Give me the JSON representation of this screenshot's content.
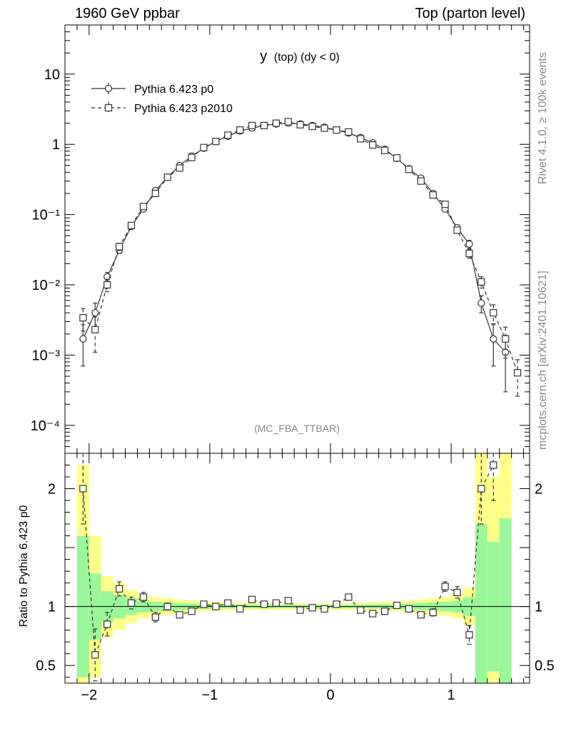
{
  "header": {
    "left": "1960 GeV ppbar",
    "right": "Top (parton level)"
  },
  "side": {
    "rivet": "Rivet 4.1.0, ≥ 100k events",
    "mcplots": "mcplots.cern.ch [arXiv:2401.10621]"
  },
  "colors": {
    "green": "#99f799",
    "yellow": "#ffff88",
    "line": "#333333",
    "grey": "#888888"
  },
  "chart_data": {
    "type": "line",
    "title_main": "y",
    "title_paren": "(top) (dy < 0)",
    "watermark": "(MC_FBA_TTBAR)",
    "xlabel": "",
    "ylabel_ratio": "Ratio to Pythia 6.423 p0",
    "xlim": [
      -2.2,
      1.65
    ],
    "ylim": [
      4e-05,
      50
    ],
    "ratio_ylim": [
      0.35,
      2.3
    ],
    "x_ticks": [
      "−2",
      "−1",
      "0",
      "1"
    ],
    "y_ticks": [
      "10",
      "1",
      "10⁻¹",
      "10⁻²",
      "10⁻³",
      "10⁻⁴"
    ],
    "ratio_ticks": [
      "2",
      "1",
      "0.5"
    ],
    "x": [
      -2.05,
      -1.95,
      -1.85,
      -1.75,
      -1.65,
      -1.55,
      -1.45,
      -1.35,
      -1.25,
      -1.15,
      -1.05,
      -0.95,
      -0.85,
      -0.75,
      -0.65,
      -0.55,
      -0.45,
      -0.35,
      -0.25,
      -0.15,
      -0.05,
      0.05,
      0.15,
      0.25,
      0.35,
      0.45,
      0.55,
      0.65,
      0.75,
      0.85,
      0.95,
      1.05,
      1.15,
      1.25,
      1.35,
      1.45,
      1.55
    ],
    "series": [
      {
        "name": "Pythia 6.423 p0",
        "marker": "circle",
        "values": [
          0.0017,
          0.004,
          0.013,
          0.031,
          0.068,
          0.12,
          0.22,
          0.34,
          0.5,
          0.68,
          0.88,
          1.1,
          1.3,
          1.55,
          1.7,
          1.85,
          1.95,
          2.0,
          1.95,
          1.85,
          1.75,
          1.6,
          1.45,
          1.25,
          1.05,
          0.85,
          0.63,
          0.45,
          0.33,
          0.2,
          0.12,
          0.065,
          0.038,
          0.0055,
          0.0017,
          0.0011,
          null
        ],
        "errors": [
          0.001,
          0.0015,
          0.002,
          0.003,
          0.005,
          0.007,
          0.01,
          0.015,
          0.02,
          0.025,
          0.03,
          0.03,
          0.035,
          0.04,
          0.04,
          0.04,
          0.045,
          0.045,
          0.045,
          0.04,
          0.04,
          0.04,
          0.035,
          0.035,
          0.03,
          0.03,
          0.025,
          0.02,
          0.015,
          0.01,
          0.008,
          0.006,
          0.005,
          0.0015,
          0.001,
          0.0008,
          null
        ]
      },
      {
        "name": "Pythia 6.423 p2010",
        "marker": "square",
        "values": [
          0.0034,
          0.0023,
          0.01,
          0.035,
          0.07,
          0.13,
          0.2,
          0.34,
          0.46,
          0.65,
          0.9,
          1.1,
          1.35,
          1.6,
          1.85,
          1.85,
          2.0,
          2.1,
          1.9,
          1.8,
          1.7,
          1.6,
          1.5,
          1.2,
          0.98,
          0.82,
          0.64,
          0.44,
          0.3,
          0.19,
          0.14,
          0.06,
          0.028,
          0.011,
          0.004,
          0.0017,
          0.00056
        ],
        "errors": [
          0.0012,
          0.0012,
          0.002,
          0.004,
          0.005,
          0.007,
          0.01,
          0.015,
          0.02,
          0.025,
          0.03,
          0.03,
          0.035,
          0.04,
          0.04,
          0.04,
          0.045,
          0.045,
          0.045,
          0.04,
          0.04,
          0.04,
          0.035,
          0.035,
          0.03,
          0.03,
          0.025,
          0.02,
          0.015,
          0.01,
          0.008,
          0.006,
          0.004,
          0.002,
          0.0012,
          0.0008,
          0.0003
        ]
      }
    ],
    "ratio": {
      "name": "Pythia 6.423 p2010 / Pythia 6.423 p0",
      "values": [
        2.0,
        0.59,
        0.85,
        1.15,
        1.03,
        1.08,
        0.91,
        1.0,
        0.93,
        0.96,
        1.02,
        1.0,
        1.03,
        0.98,
        1.06,
        1.02,
        1.03,
        1.05,
        0.97,
        0.99,
        0.98,
        1.02,
        1.08,
        0.97,
        0.94,
        0.96,
        1.01,
        0.98,
        0.93,
        0.95,
        1.17,
        1.12,
        0.76,
        2.0,
        2.2,
        null,
        null
      ],
      "errors": [
        0.3,
        0.22,
        0.1,
        0.06,
        0.05,
        0.04,
        0.04,
        0.03,
        0.02,
        0.02,
        0.02,
        0.02,
        0.02,
        0.015,
        0.015,
        0.015,
        0.015,
        0.015,
        0.015,
        0.015,
        0.015,
        0.015,
        0.015,
        0.015,
        0.015,
        0.015,
        0.02,
        0.02,
        0.02,
        0.03,
        0.04,
        0.05,
        0.08,
        0.3,
        0.3,
        null,
        null
      ]
    },
    "bands": {
      "x_edges": [
        -2.1,
        -2.0,
        -1.9,
        -1.8,
        -1.7,
        -1.6,
        -1.5,
        -1.4,
        -1.3,
        -1.2,
        -1.1,
        -1.0,
        -0.9,
        -0.8,
        -0.7,
        -0.6,
        -0.5,
        -0.4,
        -0.3,
        -0.2,
        -0.1,
        0.0,
        0.1,
        0.2,
        0.3,
        0.4,
        0.5,
        0.6,
        0.7,
        0.8,
        0.9,
        1.0,
        1.1,
        1.2,
        1.3,
        1.4,
        1.5
      ],
      "green_half": [
        0.6,
        0.28,
        0.13,
        0.1,
        0.07,
        0.05,
        0.04,
        0.035,
        0.03,
        0.025,
        0.02,
        0.02,
        0.017,
        0.015,
        0.014,
        0.013,
        0.013,
        0.013,
        0.013,
        0.013,
        0.013,
        0.013,
        0.014,
        0.015,
        0.017,
        0.02,
        0.02,
        0.025,
        0.03,
        0.035,
        0.04,
        0.05,
        0.08,
        0.7,
        0.55,
        0.75
      ],
      "yellow_half": [
        1.2,
        0.6,
        0.26,
        0.2,
        0.14,
        0.1,
        0.08,
        0.07,
        0.06,
        0.05,
        0.04,
        0.04,
        0.034,
        0.03,
        0.028,
        0.026,
        0.026,
        0.026,
        0.026,
        0.026,
        0.026,
        0.026,
        0.028,
        0.03,
        0.034,
        0.04,
        0.04,
        0.05,
        0.06,
        0.07,
        0.08,
        0.1,
        0.16,
        1.4,
        1.1,
        1.5
      ]
    }
  }
}
